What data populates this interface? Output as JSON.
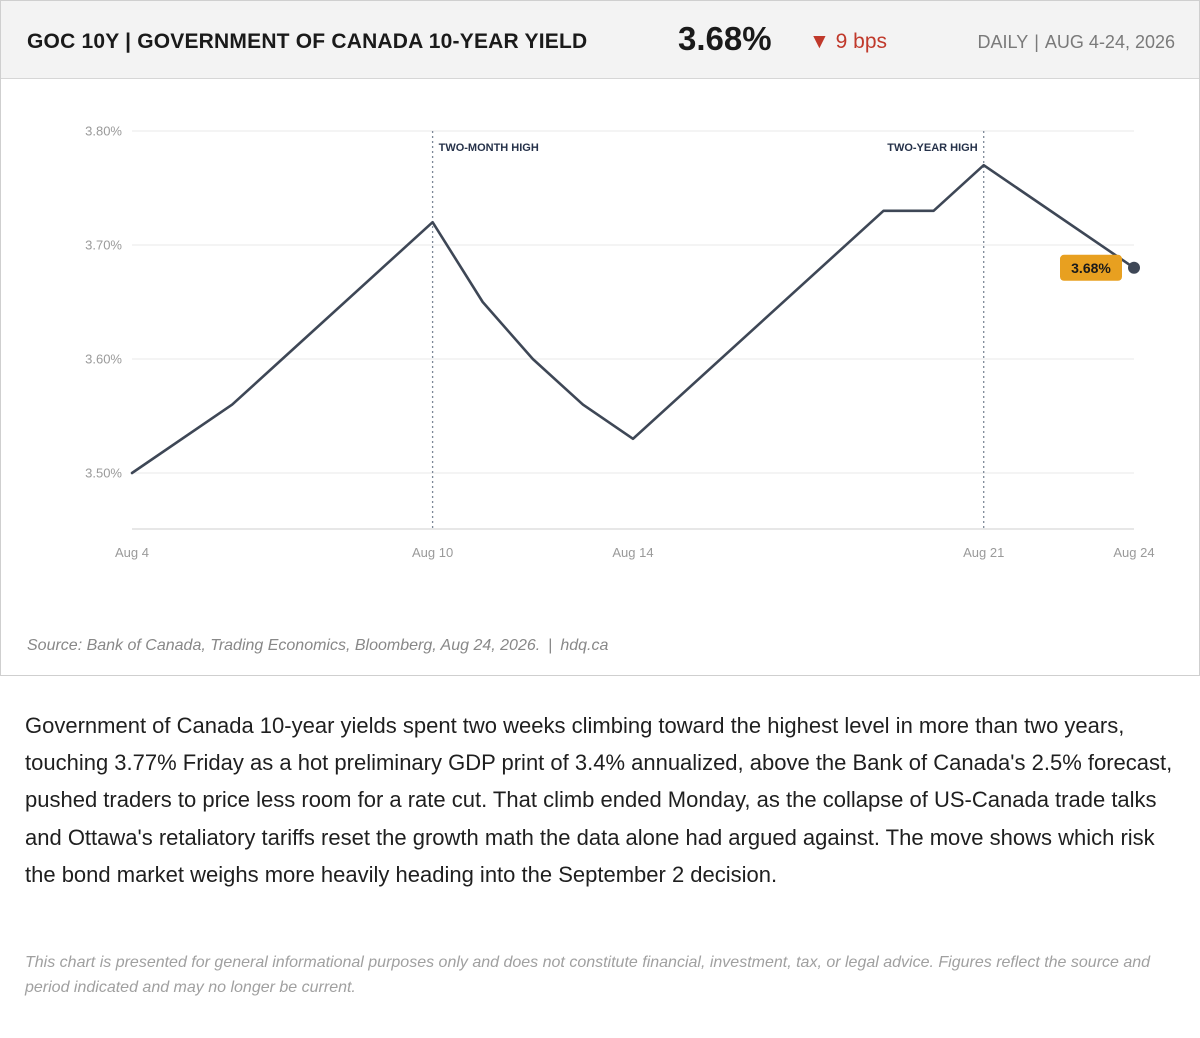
{
  "header": {
    "title": "GOC 10Y | GOVERNMENT OF CANADA 10-YEAR YIELD",
    "value": "3.68%",
    "change_arrow": "▼",
    "change": "9 bps",
    "frequency": "DAILY",
    "separator": "|",
    "period": "AUG 4-24, 2026",
    "change_color": "#c0392b"
  },
  "chart_data": {
    "type": "line",
    "x": [
      "Aug 4",
      "Aug 6",
      "Aug 7",
      "Aug 10",
      "Aug 11",
      "Aug 12",
      "Aug 13",
      "Aug 14",
      "Aug 19",
      "Aug 20",
      "Aug 21",
      "Aug 24"
    ],
    "series": [
      {
        "values": [
          3.5,
          3.56,
          3.6,
          3.72,
          3.65,
          3.6,
          3.56,
          3.53,
          3.73,
          3.73,
          3.77,
          3.68
        ],
        "color": "#3e4756"
      }
    ],
    "x_ticks": [
      "Aug 4",
      "Aug 10",
      "Aug 14",
      "Aug 21",
      "Aug 24"
    ],
    "y_ticks": [
      "3.50%",
      "3.60%",
      "3.70%",
      "3.80%"
    ],
    "ylim": [
      3.45,
      3.8
    ],
    "grid": true,
    "annotations": [
      {
        "x": "Aug 10",
        "label": "TWO-MONTH HIGH"
      },
      {
        "x": "Aug 21",
        "label": "TWO-YEAR HIGH"
      }
    ],
    "last_value_label": "3.68%",
    "label_color": "#e8a020",
    "xlabel": "",
    "ylabel": ""
  },
  "source": {
    "text": "Source: Bank of Canada, Trading Economics, Bloomberg, Aug 24, 2026.",
    "separator": "|",
    "site": "hdq.ca"
  },
  "body": "Government of Canada 10-year yields spent two weeks climbing toward the highest level in more than two years, touching 3.77% Friday as a hot preliminary GDP print of 3.4% annualized, above the Bank of Canada's 2.5% forecast, pushed traders to price less room for a rate cut. That climb ended Monday, as the collapse of US-Canada trade talks and Ottawa's retaliatory tariffs reset the growth math the data alone had argued against. The move shows which risk the bond market weighs more heavily heading into the September 2 decision.",
  "disclaimer": "This chart is presented for general informational purposes only and does not constitute financial, investment, tax, or legal advice. Figures reflect the source and period indicated and may no longer be current."
}
